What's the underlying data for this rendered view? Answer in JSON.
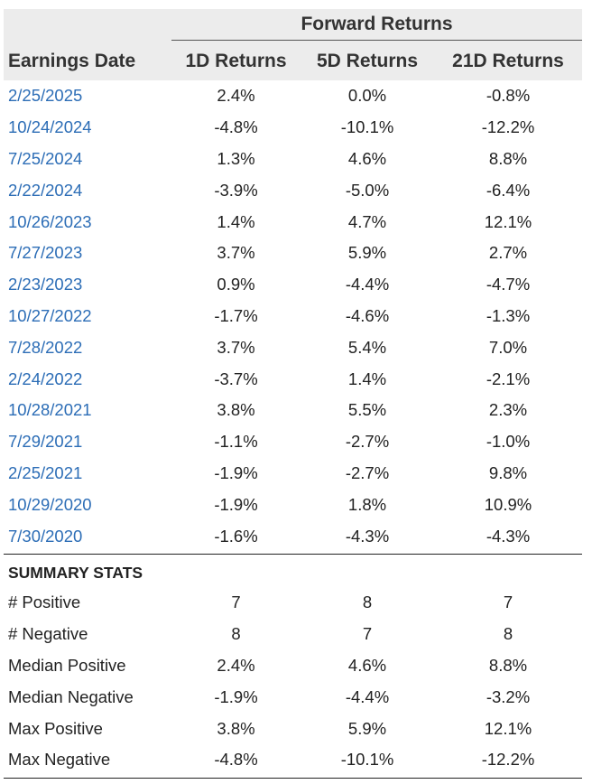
{
  "header": {
    "group_title": "Forward Returns",
    "columns": [
      "Earnings Date",
      "1D Returns",
      "5D Returns",
      "21D Returns"
    ]
  },
  "rows": [
    {
      "date": "2/25/2025",
      "d1": "2.4%",
      "d5": "0.0%",
      "d21": "-0.8%"
    },
    {
      "date": "10/24/2024",
      "d1": "-4.8%",
      "d5": "-10.1%",
      "d21": "-12.2%"
    },
    {
      "date": "7/25/2024",
      "d1": "1.3%",
      "d5": "4.6%",
      "d21": "8.8%"
    },
    {
      "date": "2/22/2024",
      "d1": "-3.9%",
      "d5": "-5.0%",
      "d21": "-6.4%"
    },
    {
      "date": "10/26/2023",
      "d1": "1.4%",
      "d5": "4.7%",
      "d21": "12.1%"
    },
    {
      "date": "7/27/2023",
      "d1": "3.7%",
      "d5": "5.9%",
      "d21": "2.7%"
    },
    {
      "date": "2/23/2023",
      "d1": "0.9%",
      "d5": "-4.4%",
      "d21": "-4.7%"
    },
    {
      "date": "10/27/2022",
      "d1": "-1.7%",
      "d5": "-4.6%",
      "d21": "-1.3%"
    },
    {
      "date": "7/28/2022",
      "d1": "3.7%",
      "d5": "5.4%",
      "d21": "7.0%"
    },
    {
      "date": "2/24/2022",
      "d1": "-3.7%",
      "d5": "1.4%",
      "d21": "-2.1%"
    },
    {
      "date": "10/28/2021",
      "d1": "3.8%",
      "d5": "5.5%",
      "d21": "2.3%"
    },
    {
      "date": "7/29/2021",
      "d1": "-1.1%",
      "d5": "-2.7%",
      "d21": "-1.0%"
    },
    {
      "date": "2/25/2021",
      "d1": "-1.9%",
      "d5": "-2.7%",
      "d21": "9.8%"
    },
    {
      "date": "10/29/2020",
      "d1": "-1.9%",
      "d5": "1.8%",
      "d21": "10.9%"
    },
    {
      "date": "7/30/2020",
      "d1": "-1.6%",
      "d5": "-4.3%",
      "d21": "-4.3%"
    }
  ],
  "summary": {
    "title": "SUMMARY STATS",
    "rows": [
      {
        "label": "# Positive",
        "d1": "7",
        "d5": "8",
        "d21": "7"
      },
      {
        "label": "# Negative",
        "d1": "8",
        "d5": "7",
        "d21": "8"
      },
      {
        "label": "Median Positive",
        "d1": "2.4%",
        "d5": "4.6%",
        "d21": "8.8%"
      },
      {
        "label": "Median Negative",
        "d1": "-1.9%",
        "d5": "-4.4%",
        "d21": "-3.2%"
      },
      {
        "label": "Max Positive",
        "d1": "3.8%",
        "d5": "5.9%",
        "d21": "12.1%"
      },
      {
        "label": "Max Negative",
        "d1": "-4.8%",
        "d5": "-10.1%",
        "d21": "-12.2%"
      }
    ]
  }
}
